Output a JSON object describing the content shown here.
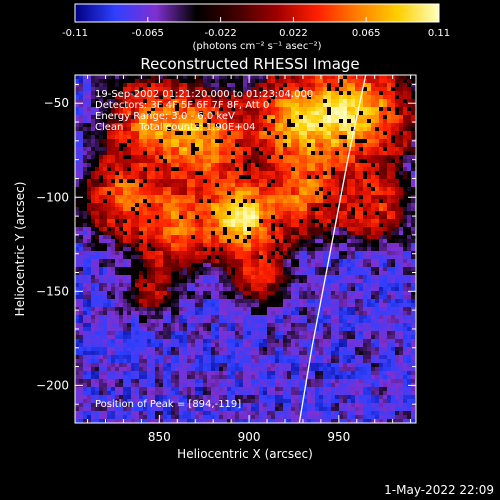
{
  "chart_data": {
    "type": "heatmap",
    "title": "Reconstructed RHESSI Image",
    "xlabel": "Heliocentric X (arcsec)",
    "ylabel": "Heliocentric Y (arcsec)",
    "xlim": [
      803,
      993
    ],
    "ylim": [
      -220,
      -35
    ],
    "x_ticks": [
      850,
      900,
      950
    ],
    "y_ticks": [
      -50,
      -100,
      -150,
      -200
    ],
    "colorbar": {
      "range": [
        -0.11,
        0.11
      ],
      "ticks": [
        "-0.11",
        "-0.065",
        "-0.022",
        "0.022",
        "0.065",
        "0.11"
      ],
      "units_label": "(photons cm⁻² s⁻¹ asec⁻²)",
      "colormap": [
        "#000080",
        "#3040ff",
        "#8030d0",
        "#000000",
        "#400000",
        "#a00000",
        "#ff2000",
        "#ff8000",
        "#ffd000",
        "#ffffc0"
      ]
    },
    "annotations": [
      "19-Sep-2002 01:21:20.000 to 01:23:04.000",
      "Detectors: 3F 4F 5F 6F 7F 8F, Att 0",
      "Energy Range: 3.0 - 6.0 keV",
      "Clean     Total counts: 1.90E+04"
    ],
    "peak_label": "Position of Peak = [894,-119]",
    "limb_curve": [
      [
        965,
        -35
      ],
      [
        955,
        -80
      ],
      [
        945,
        -130
      ],
      [
        935,
        -180
      ],
      [
        928,
        -220
      ]
    ],
    "emission_blobs": [
      {
        "x": 895,
        "y": -110,
        "sigma": 12,
        "amp": 1.0
      },
      {
        "x": 960,
        "y": -55,
        "sigma": 18,
        "amp": 0.9
      },
      {
        "x": 925,
        "y": -60,
        "sigma": 16,
        "amp": 0.75
      },
      {
        "x": 875,
        "y": -70,
        "sigma": 16,
        "amp": 0.7
      },
      {
        "x": 845,
        "y": -60,
        "sigma": 15,
        "amp": 0.6
      },
      {
        "x": 830,
        "y": -100,
        "sigma": 14,
        "amp": 0.55
      },
      {
        "x": 860,
        "y": -115,
        "sigma": 14,
        "amp": 0.6
      },
      {
        "x": 930,
        "y": -100,
        "sigma": 14,
        "amp": 0.55
      },
      {
        "x": 970,
        "y": -105,
        "sigma": 12,
        "amp": 0.45
      },
      {
        "x": 905,
        "y": -140,
        "sigma": 12,
        "amp": 0.35
      },
      {
        "x": 845,
        "y": -150,
        "sigma": 10,
        "amp": 0.25
      }
    ]
  },
  "footer": {
    "date": "1-May-2022 22:09"
  }
}
